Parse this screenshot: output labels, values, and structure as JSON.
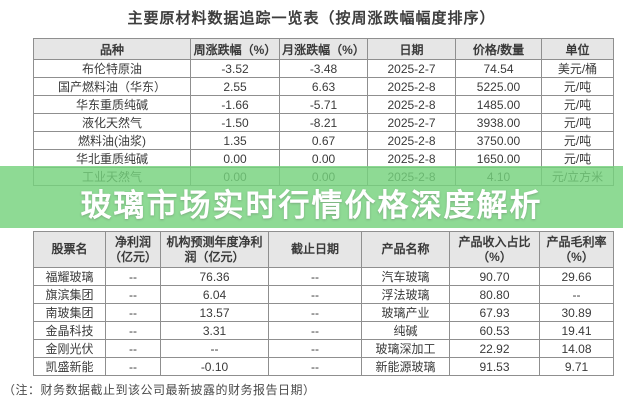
{
  "page": {
    "title": "主要原材料数据追踪一览表（按周涨跌幅幅度排序）",
    "banner": "玻璃市场实时行情价格深度解析",
    "note": "（注：财务数据截止到该公司最新披露的财务报告日期）"
  },
  "colors": {
    "banner_green": "#8eda94",
    "header_bg": "#e6e6e6",
    "border_gray": "#8f8f8f"
  },
  "materials_table": {
    "headers": [
      "品种",
      "周涨跌幅（%）",
      "月涨跌幅（%）",
      "日期",
      "价格/数量",
      "单位"
    ],
    "highlight_row_index": 6,
    "rows": [
      [
        "布伦特原油",
        "-3.52",
        "-3.48",
        "2025-2-7",
        "74.54",
        "美元/桶"
      ],
      [
        "国产燃料油（华东）",
        "2.55",
        "6.63",
        "2025-2-8",
        "5225.00",
        "元/吨"
      ],
      [
        "华东重质纯碱",
        "-1.66",
        "-5.71",
        "2025-2-8",
        "1485.00",
        "元/吨"
      ],
      [
        "液化天然气",
        "-1.50",
        "-8.21",
        "2025-2-7",
        "3938.00",
        "元/吨"
      ],
      [
        "燃料油(油浆)",
        "1.35",
        "0.67",
        "2025-2-8",
        "3750.00",
        "元/吨"
      ],
      [
        "华北重质纯碱",
        "0.00",
        "0.00",
        "2025-2-8",
        "1650.00",
        "元/吨"
      ],
      [
        "工业天然气",
        "0.00",
        "0.00",
        "2025-2-8",
        "4.10",
        "元/立方米"
      ]
    ]
  },
  "stocks_table": {
    "headers": [
      "股票名",
      "净利润（亿元）",
      "机构预测年度净利润（亿元）",
      "截止日期",
      "产品名称",
      "产品收入占比（%）",
      "产品毛利率（%）"
    ],
    "rows": [
      [
        "福耀玻璃",
        "--",
        "76.36",
        "--",
        "汽车玻璃",
        "90.70",
        "29.66"
      ],
      [
        "旗滨集团",
        "--",
        "6.04",
        "--",
        "浮法玻璃",
        "80.80",
        "--"
      ],
      [
        "南玻集团",
        "--",
        "13.57",
        "--",
        "玻璃产业",
        "67.93",
        "30.89"
      ],
      [
        "金晶科技",
        "--",
        "3.31",
        "--",
        "纯碱",
        "60.53",
        "19.41"
      ],
      [
        "金刚光伏",
        "--",
        "--",
        "--",
        "玻璃深加工",
        "22.92",
        "14.08"
      ],
      [
        "凯盛新能",
        "--",
        "-0.10",
        "--",
        "新能源玻璃",
        "91.53",
        "9.71"
      ]
    ]
  }
}
